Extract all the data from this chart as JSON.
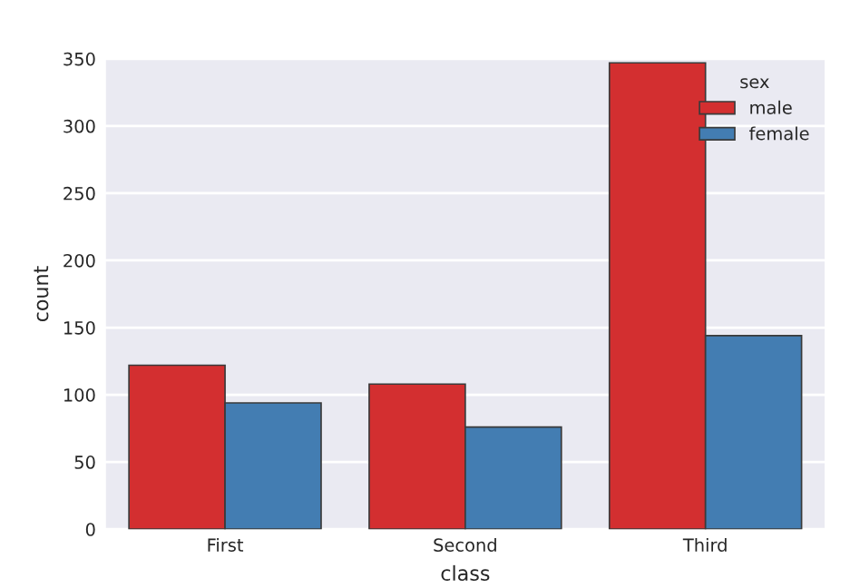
{
  "chart_data": {
    "type": "bar",
    "xlabel": "class",
    "ylabel": "count",
    "legend_title": "sex",
    "categories": [
      "First",
      "Second",
      "Third"
    ],
    "series": [
      {
        "name": "male",
        "color": "#d32f30",
        "values": [
          122,
          108,
          347
        ]
      },
      {
        "name": "female",
        "color": "#437db2",
        "values": [
          94,
          76,
          144
        ]
      }
    ],
    "ylim": [
      0,
      350
    ],
    "yticks": [
      0,
      50,
      100,
      150,
      200,
      250,
      300,
      350
    ],
    "grid": "y",
    "legend": "top right"
  }
}
